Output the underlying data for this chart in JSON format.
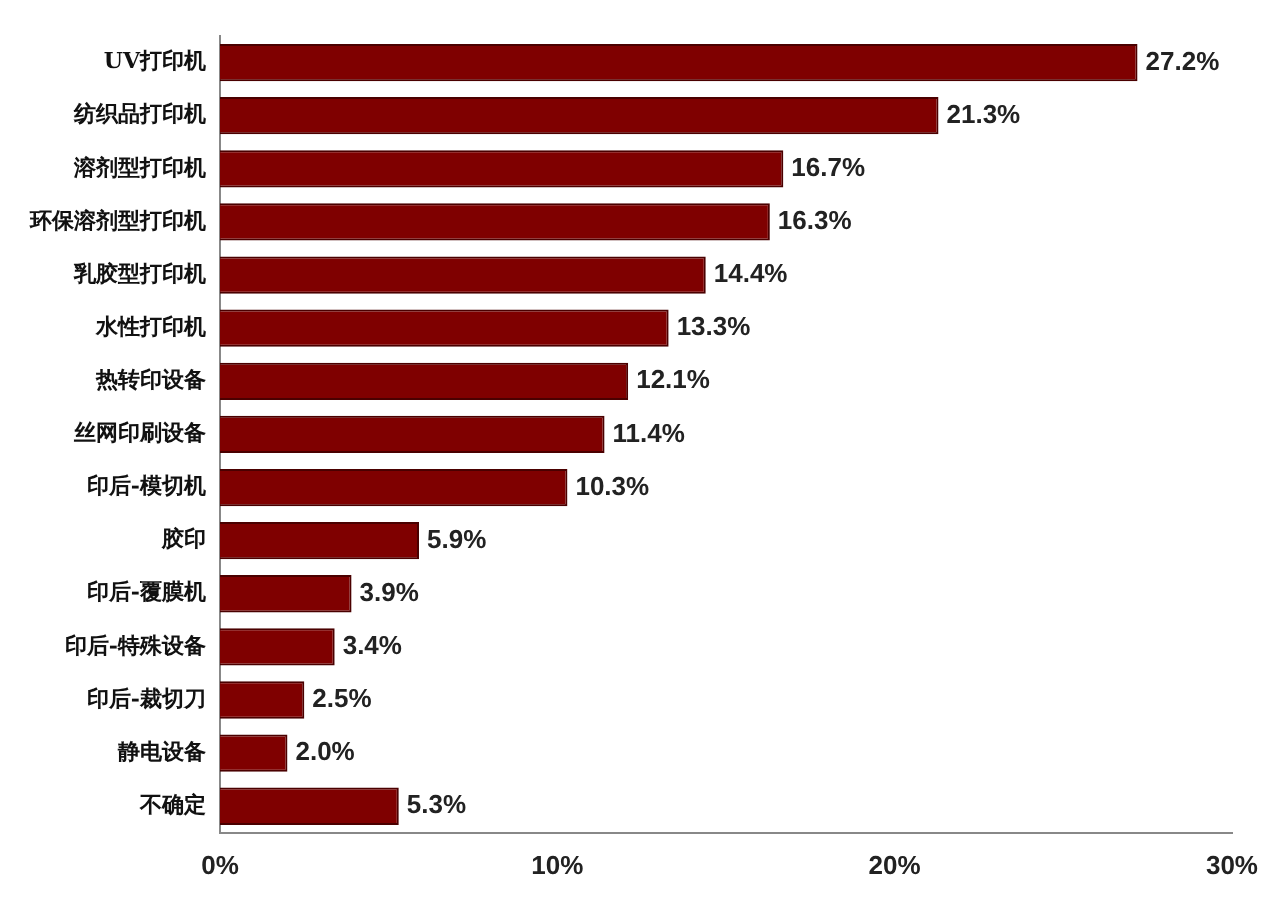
{
  "chart_data": {
    "type": "bar",
    "orientation": "horizontal",
    "categories": [
      "UV打印机",
      "纺织品打印机",
      "溶剂型打印机",
      "环保溶剂型打印机",
      "乳胶型打印机",
      "水性打印机",
      "热转印设备",
      "丝网印刷设备",
      "印后-模切机",
      "胶印",
      "印后-覆膜机",
      "印后-特殊设备",
      "印后-裁切刀",
      "静电设备",
      "不确定"
    ],
    "values": [
      27.2,
      21.3,
      16.7,
      16.3,
      14.4,
      13.3,
      12.1,
      11.4,
      10.3,
      5.9,
      3.9,
      3.4,
      2.5,
      2.0,
      5.3
    ],
    "value_labels": [
      "27.2%",
      "21.3%",
      "16.7%",
      "16.3%",
      "14.4%",
      "13.3%",
      "12.1%",
      "11.4%",
      "10.3%",
      "5.9%",
      "3.9%",
      "3.4%",
      "2.5%",
      "2.0%",
      "5.3%"
    ],
    "color": "#7f0000",
    "xlim": [
      0,
      30
    ],
    "xticks": [
      {
        "value": 0,
        "label": "0%"
      },
      {
        "value": 10,
        "label": "10%"
      },
      {
        "value": 20,
        "label": "20%"
      },
      {
        "value": 30,
        "label": "30%"
      }
    ],
    "grid": false,
    "legend": false
  }
}
